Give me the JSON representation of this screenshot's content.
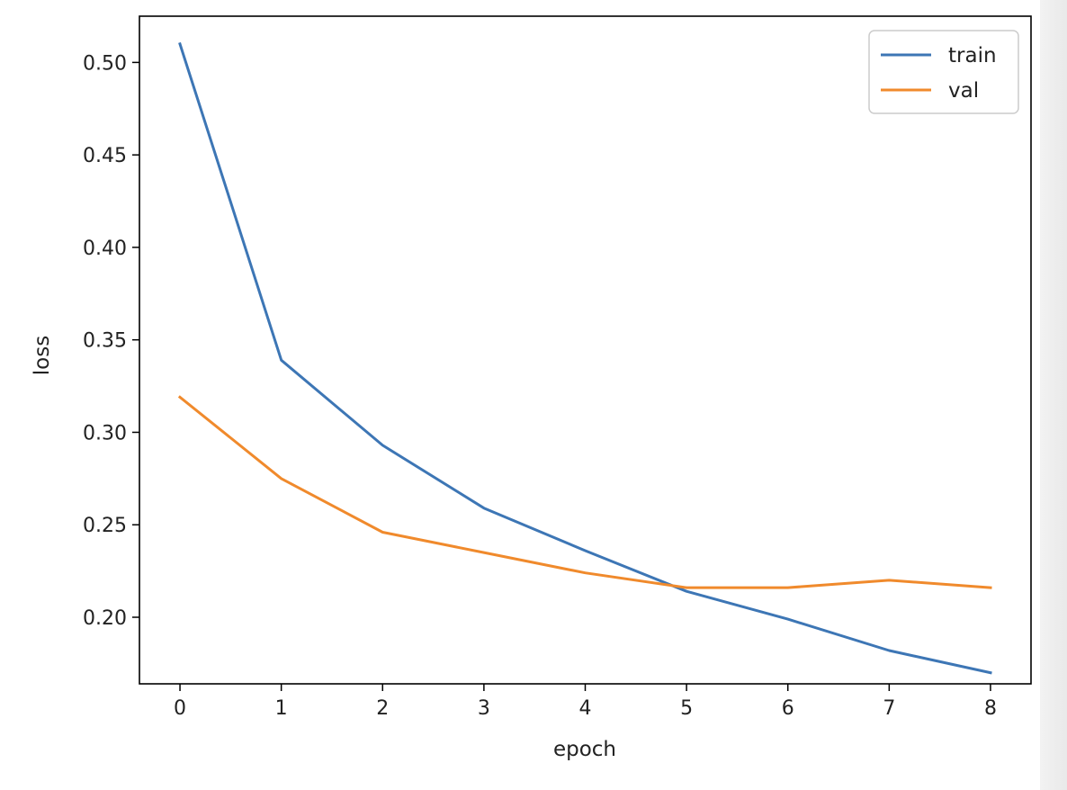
{
  "chart_data": {
    "type": "line",
    "title": "",
    "xlabel": "epoch",
    "ylabel": "loss",
    "x": [
      0,
      1,
      2,
      3,
      4,
      5,
      6,
      7,
      8
    ],
    "xlim": [
      -0.4,
      8.4
    ],
    "ylim": [
      0.164,
      0.525
    ],
    "xticks": [
      0,
      1,
      2,
      3,
      4,
      5,
      6,
      7,
      8
    ],
    "yticks": [
      0.2,
      0.25,
      0.3,
      0.35,
      0.4,
      0.45,
      0.5
    ],
    "xtick_labels": [
      "0",
      "1",
      "2",
      "3",
      "4",
      "5",
      "6",
      "7",
      "8"
    ],
    "ytick_labels": [
      "0.20",
      "0.25",
      "0.30",
      "0.35",
      "0.40",
      "0.45",
      "0.50"
    ],
    "grid": false,
    "legend_position": "top-right",
    "series": [
      {
        "name": "train",
        "color": "#3d76b5",
        "values": [
          0.51,
          0.339,
          0.293,
          0.259,
          0.236,
          0.214,
          0.199,
          0.182,
          0.17
        ]
      },
      {
        "name": "val",
        "color": "#f08a2c",
        "values": [
          0.319,
          0.275,
          0.246,
          0.235,
          0.224,
          0.216,
          0.216,
          0.22,
          0.216
        ]
      }
    ]
  }
}
